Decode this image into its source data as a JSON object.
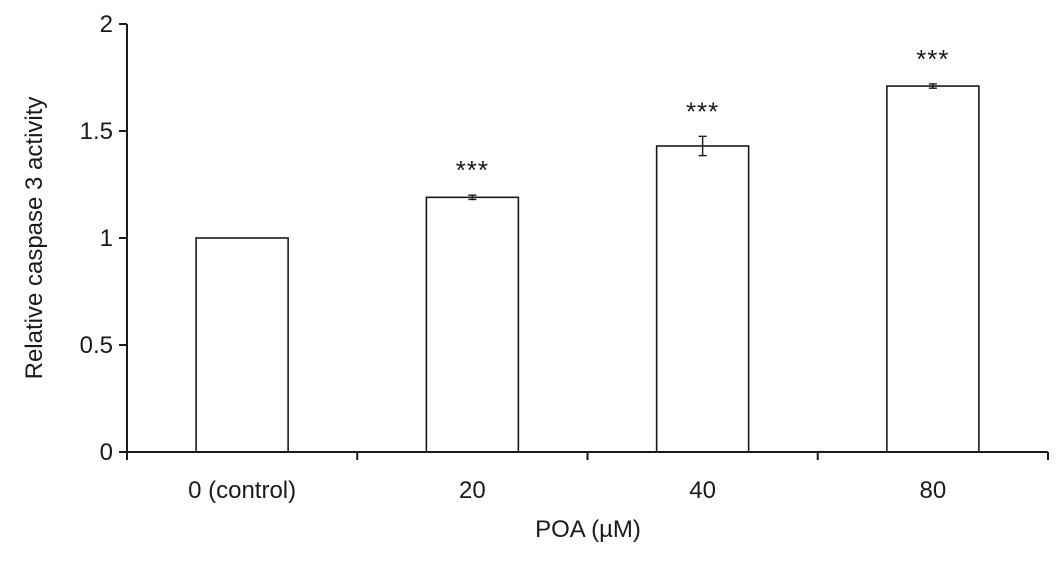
{
  "chart_data": {
    "type": "bar",
    "categories": [
      "0 (control)",
      "20",
      "40",
      "80"
    ],
    "values": [
      1.0,
      1.19,
      1.43,
      1.71
    ],
    "errors": [
      0.0,
      0.01,
      0.045,
      0.01
    ],
    "annotations": [
      "",
      "***",
      "***",
      "***"
    ],
    "xlabel": "POA (µM)",
    "ylabel": "Relative caspase 3 activity",
    "ylim": [
      0,
      2
    ],
    "yticks": [
      0,
      0.5,
      1,
      1.5,
      2
    ],
    "ytick_labels": [
      "0",
      "0.5",
      "1",
      "1.5",
      "2"
    ],
    "grid": false,
    "legend": "none",
    "colors": {
      "bar_fill": "#ffffff",
      "bar_stroke": "#1a1a1a",
      "axis": "#1a1a1a",
      "text": "#1a1a1a"
    }
  }
}
